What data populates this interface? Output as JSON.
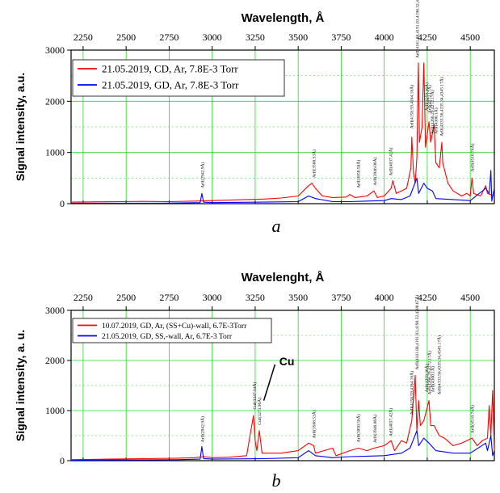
{
  "chart_data": [
    {
      "type": "line",
      "panel_label": "a",
      "xlabel": "Wavelength, Å",
      "ylabel": "Signal intensity, a.u.",
      "xlim": [
        2180,
        4640
      ],
      "ylim": [
        0,
        3000
      ],
      "xticks": [
        2250,
        2500,
        2750,
        3000,
        3250,
        3500,
        3750,
        4000,
        4250,
        4500
      ],
      "yticks": [
        0,
        1000,
        2000,
        3000
      ],
      "grid": true,
      "legend_position": "top-left",
      "series": [
        {
          "name": "21.05.2019, CD, Ar, 7.8E-3 Torr",
          "color": "#ff0000",
          "points": [
            [
              2180,
              30
            ],
            [
              2300,
              35
            ],
            [
              2450,
              40
            ],
            [
              2600,
              45
            ],
            [
              2750,
              40
            ],
            [
              2900,
              50
            ],
            [
              3000,
              60
            ],
            [
              3100,
              70
            ],
            [
              3200,
              80
            ],
            [
              3300,
              90
            ],
            [
              3400,
              110
            ],
            [
              3500,
              150
            ],
            [
              3560,
              350
            ],
            [
              3580,
              400
            ],
            [
              3600,
              300
            ],
            [
              3640,
              150
            ],
            [
              3700,
              120
            ],
            [
              3780,
              130
            ],
            [
              3800,
              180
            ],
            [
              3830,
              120
            ],
            [
              3900,
              150
            ],
            [
              3940,
              250
            ],
            [
              3960,
              120
            ],
            [
              4000,
              150
            ],
            [
              4040,
              300
            ],
            [
              4050,
              450
            ],
            [
              4070,
              200
            ],
            [
              4100,
              250
            ],
            [
              4130,
              300
            ],
            [
              4155,
              700
            ],
            [
              4160,
              1300
            ],
            [
              4170,
              600
            ],
            [
              4180,
              400
            ],
            [
              4190,
              900
            ],
            [
              4198,
              2750
            ],
            [
              4205,
              1200
            ],
            [
              4220,
              1500
            ],
            [
              4230,
              2750
            ],
            [
              4240,
              1100
            ],
            [
              4260,
              1600
            ],
            [
              4270,
              1200
            ],
            [
              4290,
              1550
            ],
            [
              4300,
              800
            ],
            [
              4320,
              700
            ],
            [
              4335,
              1200
            ],
            [
              4340,
              800
            ],
            [
              4370,
              400
            ],
            [
              4400,
              250
            ],
            [
              4450,
              150
            ],
            [
              4480,
              200
            ],
            [
              4500,
              150
            ],
            [
              4510,
              500
            ],
            [
              4520,
              200
            ],
            [
              4560,
              150
            ],
            [
              4590,
              350
            ],
            [
              4600,
              200
            ],
            [
              4640,
              150
            ]
          ]
        },
        {
          "name": "21.05.2019, GD, Ar, 7.8E-3 Torr",
          "color": "#0000ff",
          "points": [
            [
              2180,
              10
            ],
            [
              2400,
              10
            ],
            [
              2700,
              10
            ],
            [
              2930,
              20
            ],
            [
              2940,
              200
            ],
            [
              2950,
              30
            ],
            [
              3000,
              20
            ],
            [
              3300,
              30
            ],
            [
              3500,
              40
            ],
            [
              3560,
              150
            ],
            [
              3600,
              100
            ],
            [
              3700,
              40
            ],
            [
              3800,
              40
            ],
            [
              3900,
              50
            ],
            [
              4000,
              60
            ],
            [
              4040,
              100
            ],
            [
              4100,
              80
            ],
            [
              4150,
              150
            ],
            [
              4190,
              500
            ],
            [
              4200,
              200
            ],
            [
              4230,
              400
            ],
            [
              4250,
              300
            ],
            [
              4280,
              250
            ],
            [
              4300,
              100
            ],
            [
              4400,
              80
            ],
            [
              4500,
              60
            ],
            [
              4590,
              300
            ],
            [
              4610,
              200
            ],
            [
              4620,
              650
            ],
            [
              4625,
              50
            ],
            [
              4640,
              300
            ]
          ]
        }
      ],
      "annotations": [
        "ArII(2942.9Å)",
        "ArII(3588.53Å)",
        "ArII(3850.58Å)",
        "ArII(3946.06Å)",
        "ArII(4037.42Å)",
        "ArII(4158.59,4164.18Å)",
        "ArII(4181.88,4191.03,4198.32,4200.67Å)",
        "ArII(4259.36Å)",
        "ArII(4272.17Å)",
        "ArII(4300.1Å)",
        "ArII(4266.29,4272.17Å)",
        "ArII(4333.56,4335.34,4345.17Å)",
        "ArII(4510.74Å)"
      ]
    },
    {
      "type": "line",
      "panel_label": "b",
      "xlabel": "Wavelenght, Å",
      "ylabel": "Signal intensity, a. u.",
      "xlim": [
        2180,
        4640
      ],
      "ylim": [
        0,
        3000
      ],
      "xticks": [
        2250,
        2500,
        2750,
        3000,
        3250,
        3500,
        3750,
        4000,
        4250,
        4500
      ],
      "yticks": [
        0,
        1000,
        2000,
        3000
      ],
      "grid": true,
      "legend_position": "top-left",
      "series": [
        {
          "name": "10.07.2019, GD, Ar, (SS+Cu)-wall, 6.7E-3Torr",
          "color": "#ff0000",
          "points": [
            [
              2180,
              20
            ],
            [
              2400,
              30
            ],
            [
              2600,
              40
            ],
            [
              2800,
              50
            ],
            [
              2900,
              60
            ],
            [
              2950,
              80
            ],
            [
              3000,
              60
            ],
            [
              3100,
              70
            ],
            [
              3200,
              100
            ],
            [
              3240,
              900
            ],
            [
              3250,
              400
            ],
            [
              3260,
              200
            ],
            [
              3274,
              600
            ],
            [
              3290,
              150
            ],
            [
              3400,
              150
            ],
            [
              3500,
              200
            ],
            [
              3560,
              350
            ],
            [
              3590,
              300
            ],
            [
              3600,
              150
            ],
            [
              3700,
              250
            ],
            [
              3720,
              100
            ],
            [
              3800,
              200
            ],
            [
              3850,
              250
            ],
            [
              3900,
              200
            ],
            [
              3940,
              250
            ],
            [
              4000,
              300
            ],
            [
              4040,
              400
            ],
            [
              4060,
              200
            ],
            [
              4100,
              400
            ],
            [
              4130,
              350
            ],
            [
              4160,
              800
            ],
            [
              4180,
              1700
            ],
            [
              4190,
              600
            ],
            [
              4200,
              1200
            ],
            [
              4210,
              700
            ],
            [
              4230,
              800
            ],
            [
              4260,
              1200
            ],
            [
              4270,
              700
            ],
            [
              4290,
              700
            ],
            [
              4320,
              500
            ],
            [
              4350,
              450
            ],
            [
              4400,
              300
            ],
            [
              4450,
              350
            ],
            [
              4480,
              400
            ],
            [
              4510,
              450
            ],
            [
              4540,
              300
            ],
            [
              4570,
              400
            ],
            [
              4600,
              450
            ],
            [
              4610,
              1100
            ],
            [
              4620,
              500
            ],
            [
              4630,
              1400
            ],
            [
              4640,
              200
            ]
          ]
        },
        {
          "name": "21.05.2019, GD, SS,-wall, Ar, 6.7E-3 Torr",
          "color": "#0000ff",
          "points": [
            [
              2180,
              10
            ],
            [
              2500,
              15
            ],
            [
              2800,
              20
            ],
            [
              2930,
              30
            ],
            [
              2940,
              280
            ],
            [
              2950,
              40
            ],
            [
              3000,
              30
            ],
            [
              3300,
              40
            ],
            [
              3500,
              60
            ],
            [
              3560,
              200
            ],
            [
              3600,
              100
            ],
            [
              3700,
              60
            ],
            [
              3800,
              80
            ],
            [
              3900,
              90
            ],
            [
              4000,
              100
            ],
            [
              4100,
              150
            ],
            [
              4150,
              250
            ],
            [
              4190,
              600
            ],
            [
              4200,
              300
            ],
            [
              4230,
              450
            ],
            [
              4260,
              350
            ],
            [
              4300,
              200
            ],
            [
              4400,
              150
            ],
            [
              4500,
              150
            ],
            [
              4590,
              350
            ],
            [
              4600,
              200
            ],
            [
              4620,
              500
            ],
            [
              4630,
              100
            ],
            [
              4640,
              200
            ]
          ]
        }
      ],
      "annotations": [
        "ArII(2942.9Å)",
        "CuI(3247.54Å)",
        "CuI(3273.96Å)",
        "ArII(3588.53Å)",
        "ArII(3850.58Å)",
        "ArII(3946.06Å)",
        "ArII(4037.42Å)",
        "ArII(4158.59,4164.18Å)",
        "ArII(4181.88,4191.03,4198.32,4200.67Å)",
        "ArII(4259.36Å)",
        "ArII(4300.1Å)",
        "ArII(4266.29,4272.17Å)",
        "ArII(4333.56,4335.34,4345.17Å)",
        "ArII(4510.74Å)"
      ],
      "callout": "Cu"
    }
  ]
}
